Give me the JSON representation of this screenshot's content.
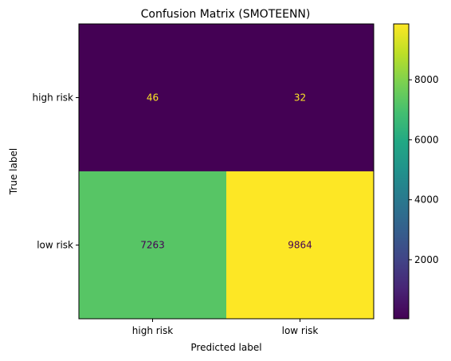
{
  "chart_data": {
    "type": "heatmap",
    "title": "Confusion Matrix (SMOTEENN)",
    "xlabel": "Predicted label",
    "ylabel": "True label",
    "x_categories": [
      "high risk",
      "low risk"
    ],
    "y_categories": [
      "high risk",
      "low risk"
    ],
    "values": [
      [
        46,
        32
      ],
      [
        7263,
        9864
      ]
    ],
    "colormap": "viridis",
    "colorbar": {
      "range": [
        32,
        9864
      ],
      "ticks": [
        2000,
        4000,
        6000,
        8000
      ],
      "tick_labels": [
        "2000",
        "4000",
        "6000",
        "8000"
      ]
    },
    "cell_text_colors": {
      "dark_cell": "#fde725",
      "light_cell": "#440154"
    }
  }
}
